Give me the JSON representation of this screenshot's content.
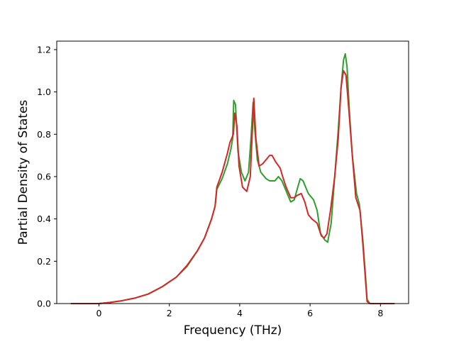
{
  "chart_data": {
    "type": "line",
    "title": "",
    "xlabel": "Frequency (THz)",
    "ylabel": "Partial Density of States",
    "xlim": [
      -1.2,
      8.8
    ],
    "ylim": [
      0,
      1.24
    ],
    "xticks": [
      0,
      2,
      4,
      6,
      8
    ],
    "yticks": [
      0.0,
      0.2,
      0.4,
      0.6,
      0.8,
      1.0,
      1.2
    ],
    "xtick_labels": [
      "0",
      "2",
      "4",
      "6",
      "8"
    ],
    "ytick_labels": [
      "0.0",
      "0.2",
      "0.4",
      "0.6",
      "0.8",
      "1.0",
      "1.2"
    ],
    "grid": false,
    "legend": "none",
    "series": [
      {
        "color": "#2ca02c",
        "points": [
          [
            -0.8,
            0.0
          ],
          [
            -0.4,
            0.0
          ],
          [
            0.0,
            0.0
          ],
          [
            0.3,
            0.005
          ],
          [
            0.6,
            0.012
          ],
          [
            1.0,
            0.025
          ],
          [
            1.4,
            0.045
          ],
          [
            1.8,
            0.08
          ],
          [
            2.2,
            0.125
          ],
          [
            2.5,
            0.175
          ],
          [
            2.8,
            0.25
          ],
          [
            3.0,
            0.31
          ],
          [
            3.2,
            0.4
          ],
          [
            3.3,
            0.46
          ],
          [
            3.35,
            0.54
          ],
          [
            3.5,
            0.59
          ],
          [
            3.65,
            0.66
          ],
          [
            3.75,
            0.73
          ],
          [
            3.8,
            0.78
          ],
          [
            3.83,
            0.96
          ],
          [
            3.88,
            0.94
          ],
          [
            3.95,
            0.72
          ],
          [
            4.05,
            0.62
          ],
          [
            4.15,
            0.58
          ],
          [
            4.25,
            0.62
          ],
          [
            4.32,
            0.78
          ],
          [
            4.38,
            0.95
          ],
          [
            4.43,
            0.82
          ],
          [
            4.5,
            0.68
          ],
          [
            4.6,
            0.62
          ],
          [
            4.75,
            0.59
          ],
          [
            4.85,
            0.58
          ],
          [
            5.0,
            0.58
          ],
          [
            5.1,
            0.6
          ],
          [
            5.2,
            0.58
          ],
          [
            5.35,
            0.52
          ],
          [
            5.45,
            0.48
          ],
          [
            5.55,
            0.49
          ],
          [
            5.65,
            0.55
          ],
          [
            5.72,
            0.59
          ],
          [
            5.8,
            0.58
          ],
          [
            5.95,
            0.52
          ],
          [
            6.1,
            0.49
          ],
          [
            6.2,
            0.44
          ],
          [
            6.3,
            0.33
          ],
          [
            6.42,
            0.3
          ],
          [
            6.5,
            0.29
          ],
          [
            6.6,
            0.38
          ],
          [
            6.7,
            0.6
          ],
          [
            6.8,
            0.82
          ],
          [
            6.88,
            1.02
          ],
          [
            6.95,
            1.15
          ],
          [
            7.0,
            1.18
          ],
          [
            7.05,
            1.12
          ],
          [
            7.12,
            0.9
          ],
          [
            7.2,
            0.7
          ],
          [
            7.32,
            0.52
          ],
          [
            7.4,
            0.47
          ],
          [
            7.5,
            0.3
          ],
          [
            7.58,
            0.12
          ],
          [
            7.62,
            0.02
          ],
          [
            7.7,
            0.0
          ],
          [
            8.0,
            0.0
          ],
          [
            8.4,
            0.0
          ]
        ]
      },
      {
        "color": "#d62728",
        "points": [
          [
            -0.8,
            0.0
          ],
          [
            -0.4,
            0.0
          ],
          [
            0.0,
            0.0
          ],
          [
            0.3,
            0.005
          ],
          [
            0.6,
            0.012
          ],
          [
            1.0,
            0.025
          ],
          [
            1.4,
            0.045
          ],
          [
            1.8,
            0.08
          ],
          [
            2.2,
            0.125
          ],
          [
            2.5,
            0.18
          ],
          [
            2.8,
            0.25
          ],
          [
            3.0,
            0.31
          ],
          [
            3.2,
            0.4
          ],
          [
            3.3,
            0.46
          ],
          [
            3.35,
            0.55
          ],
          [
            3.5,
            0.62
          ],
          [
            3.65,
            0.71
          ],
          [
            3.72,
            0.76
          ],
          [
            3.82,
            0.8
          ],
          [
            3.86,
            0.9
          ],
          [
            3.92,
            0.84
          ],
          [
            3.98,
            0.65
          ],
          [
            4.08,
            0.55
          ],
          [
            4.2,
            0.53
          ],
          [
            4.3,
            0.6
          ],
          [
            4.36,
            0.82
          ],
          [
            4.4,
            0.97
          ],
          [
            4.46,
            0.78
          ],
          [
            4.55,
            0.65
          ],
          [
            4.65,
            0.66
          ],
          [
            4.75,
            0.68
          ],
          [
            4.85,
            0.7
          ],
          [
            4.92,
            0.7
          ],
          [
            5.02,
            0.67
          ],
          [
            5.15,
            0.64
          ],
          [
            5.22,
            0.6
          ],
          [
            5.32,
            0.55
          ],
          [
            5.45,
            0.5
          ],
          [
            5.55,
            0.5
          ],
          [
            5.62,
            0.51
          ],
          [
            5.75,
            0.52
          ],
          [
            5.85,
            0.48
          ],
          [
            5.95,
            0.42
          ],
          [
            6.05,
            0.4
          ],
          [
            6.2,
            0.38
          ],
          [
            6.32,
            0.32
          ],
          [
            6.4,
            0.31
          ],
          [
            6.48,
            0.33
          ],
          [
            6.58,
            0.44
          ],
          [
            6.7,
            0.6
          ],
          [
            6.8,
            0.78
          ],
          [
            6.88,
            1.02
          ],
          [
            6.95,
            1.1
          ],
          [
            7.02,
            1.08
          ],
          [
            7.1,
            0.92
          ],
          [
            7.2,
            0.7
          ],
          [
            7.3,
            0.5
          ],
          [
            7.42,
            0.44
          ],
          [
            7.5,
            0.28
          ],
          [
            7.58,
            0.1
          ],
          [
            7.62,
            0.01
          ],
          [
            7.7,
            0.0
          ],
          [
            8.0,
            0.0
          ],
          [
            8.4,
            0.0
          ]
        ]
      }
    ]
  }
}
